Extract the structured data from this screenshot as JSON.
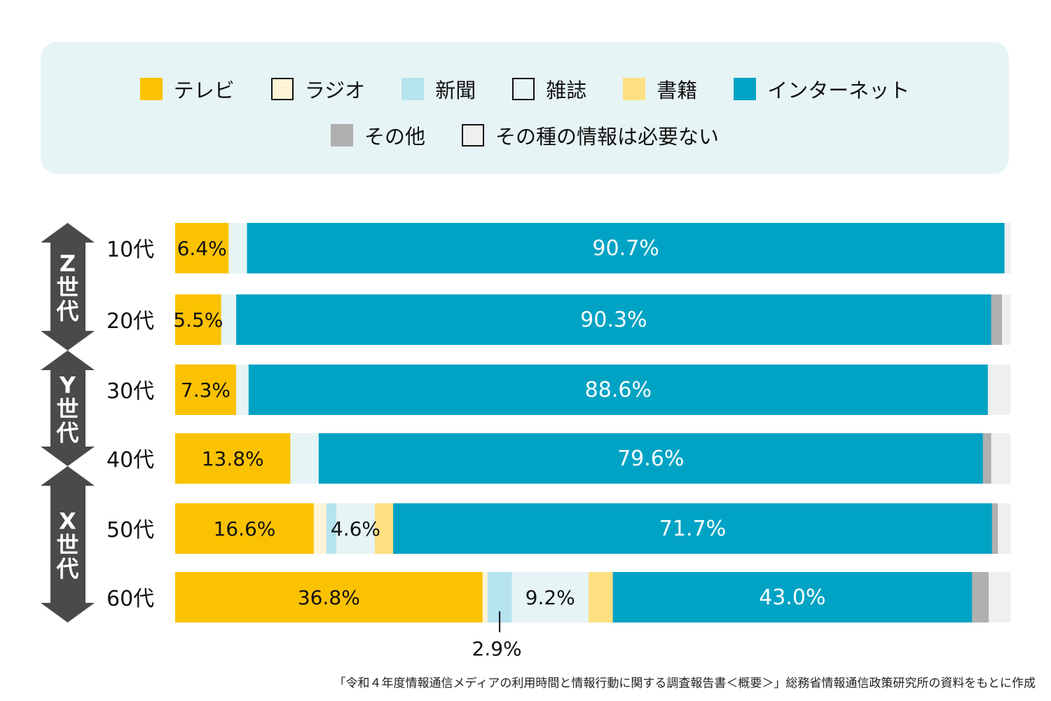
{
  "chart_data": {
    "type": "bar",
    "orientation": "horizontal-stacked-100",
    "title": "",
    "xlabel": "",
    "ylabel": "",
    "xlim": [
      0,
      100
    ],
    "legend_position": "top",
    "series": [
      {
        "name": "テレビ",
        "color": "#fac200"
      },
      {
        "name": "ラジオ",
        "color": "#fff5d6"
      },
      {
        "name": "新聞",
        "color": "#b5e3ee"
      },
      {
        "name": "雑誌",
        "color": "#e6f4f5"
      },
      {
        "name": "書籍",
        "color": "#fde081"
      },
      {
        "name": "インターネット",
        "color": "#00a3c4"
      },
      {
        "name": "その他",
        "color": "#b0b0b0"
      },
      {
        "name": "その種の情報は必要ない",
        "color": "#efefef"
      }
    ],
    "categories": [
      "10代",
      "20代",
      "30代",
      "40代",
      "50代",
      "60代"
    ],
    "values": [
      [
        6.4,
        0,
        0,
        2.2,
        0,
        90.7,
        0,
        0.7
      ],
      [
        5.5,
        0,
        0,
        1.8,
        0,
        90.3,
        1.3,
        1.0
      ],
      [
        7.3,
        0,
        0,
        1.5,
        0,
        88.6,
        0,
        2.7
      ],
      [
        13.8,
        0,
        0,
        3.4,
        0,
        79.6,
        1.0,
        2.3
      ],
      [
        16.6,
        1.5,
        1.2,
        4.6,
        2.2,
        71.7,
        0.7,
        1.5
      ],
      [
        36.8,
        0.6,
        2.9,
        9.2,
        2.9,
        43.0,
        2.0,
        2.6
      ]
    ],
    "data_labels": [
      [
        {
          "series": 0,
          "text": "6.4%"
        },
        {
          "series": 5,
          "text": "90.7%"
        }
      ],
      [
        {
          "series": 0,
          "text": "5.5%"
        },
        {
          "series": 5,
          "text": "90.3%"
        }
      ],
      [
        {
          "series": 0,
          "text": "7.3%"
        },
        {
          "series": 5,
          "text": "88.6%"
        }
      ],
      [
        {
          "series": 0,
          "text": "13.8%"
        },
        {
          "series": 5,
          "text": "79.6%"
        }
      ],
      [
        {
          "series": 0,
          "text": "16.6%"
        },
        {
          "series": 3,
          "text": "4.6%"
        },
        {
          "series": 5,
          "text": "71.7%"
        }
      ],
      [
        {
          "series": 0,
          "text": "36.8%"
        },
        {
          "series": 2,
          "text": "2.9%",
          "external": true
        },
        {
          "series": 3,
          "text": "9.2%"
        },
        {
          "series": 5,
          "text": "43.0%"
        }
      ]
    ],
    "generations": [
      {
        "label": [
          "Z",
          "世",
          "代"
        ],
        "rows": [
          0,
          1
        ]
      },
      {
        "label": [
          "Y",
          "世",
          "代"
        ],
        "rows": [
          2,
          3
        ]
      },
      {
        "label": [
          "X",
          "世",
          "代"
        ],
        "rows": [
          4,
          5
        ]
      }
    ],
    "generation_color": "#4a4a4a"
  },
  "legend": {
    "background": "#e6f4f5",
    "row1": [
      0,
      1,
      2,
      3,
      4,
      5
    ],
    "row2": [
      6,
      7
    ]
  },
  "footnote": "「令和４年度情報通信メディアの利用時間と情報行動に関する調査報告書＜概要＞」総務省情報通信政策研究所の資料をもとに作成"
}
